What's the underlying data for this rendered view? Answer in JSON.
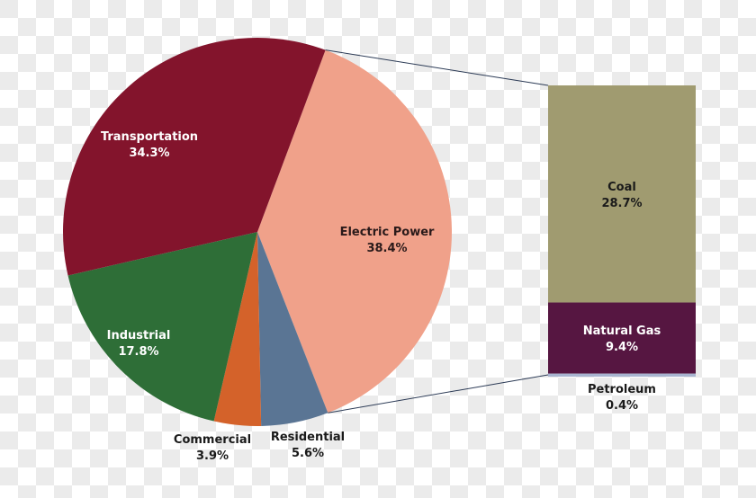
{
  "chart_data": {
    "type": "pie",
    "pie": {
      "slices": [
        {
          "label": "Electric Power",
          "value": 38.4,
          "display": "38.4%",
          "color": "#f0a18a",
          "text_color": "#2a1a1a"
        },
        {
          "label": "Residential",
          "value": 5.6,
          "display": "5.6%",
          "color": "#5a7594",
          "text_color": "#1a1a1a"
        },
        {
          "label": "Commercial",
          "value": 3.9,
          "display": "3.9%",
          "color": "#d4622a",
          "text_color": "#1a1a1a"
        },
        {
          "label": "Industrial",
          "value": 17.8,
          "display": "17.8%",
          "color": "#2e6e37",
          "text_color": "#ffffff"
        },
        {
          "label": "Transportation",
          "value": 34.3,
          "display": "34.3%",
          "color": "#83142c",
          "text_color": "#ffffff"
        }
      ]
    },
    "bar": {
      "breakdown_of": "Electric Power",
      "segments": [
        {
          "label": "Coal",
          "value": 28.7,
          "display": "28.7%",
          "color": "#a09b70",
          "text_color": "#1a1a1a"
        },
        {
          "label": "Natural Gas",
          "value": 9.4,
          "display": "9.4%",
          "color": "#561641",
          "text_color": "#ffffff"
        },
        {
          "label": "Petroleum",
          "value": 0.4,
          "display": "0.4%",
          "color": "#a8b4d0",
          "text_color": "#1a1a1a"
        }
      ]
    }
  }
}
